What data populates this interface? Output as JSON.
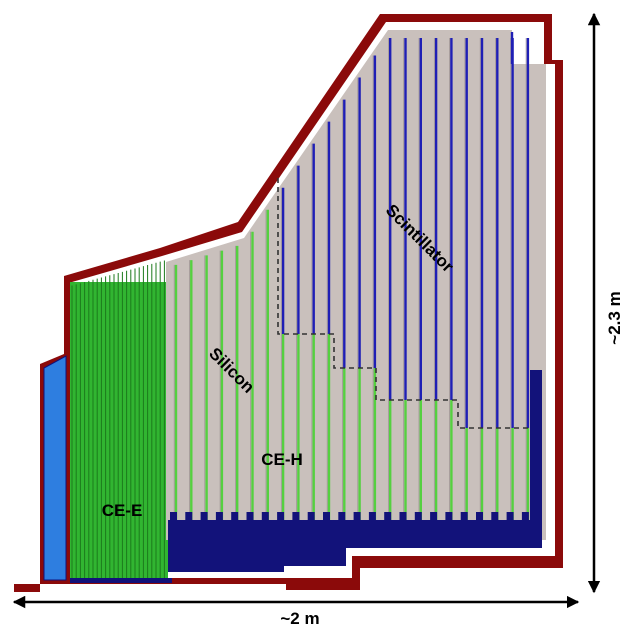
{
  "labels": {
    "ce_e": "CE-E",
    "ce_h": "CE-H",
    "silicon": "Silicon",
    "scintillator": "Scintillator",
    "width": "~2 m",
    "height": "~2.3 m"
  },
  "colors": {
    "outer_shell": "#8b0a0a",
    "absorber": "#c9c0bc",
    "ce_e_green": "#31b531",
    "silicon_layer": "#55d040",
    "scint_layer": "#1f1fb5",
    "support_navy": "#12127a",
    "left_block": "#2e7ee0",
    "boundary_dash": "#333333",
    "arrow": "#000000"
  }
}
